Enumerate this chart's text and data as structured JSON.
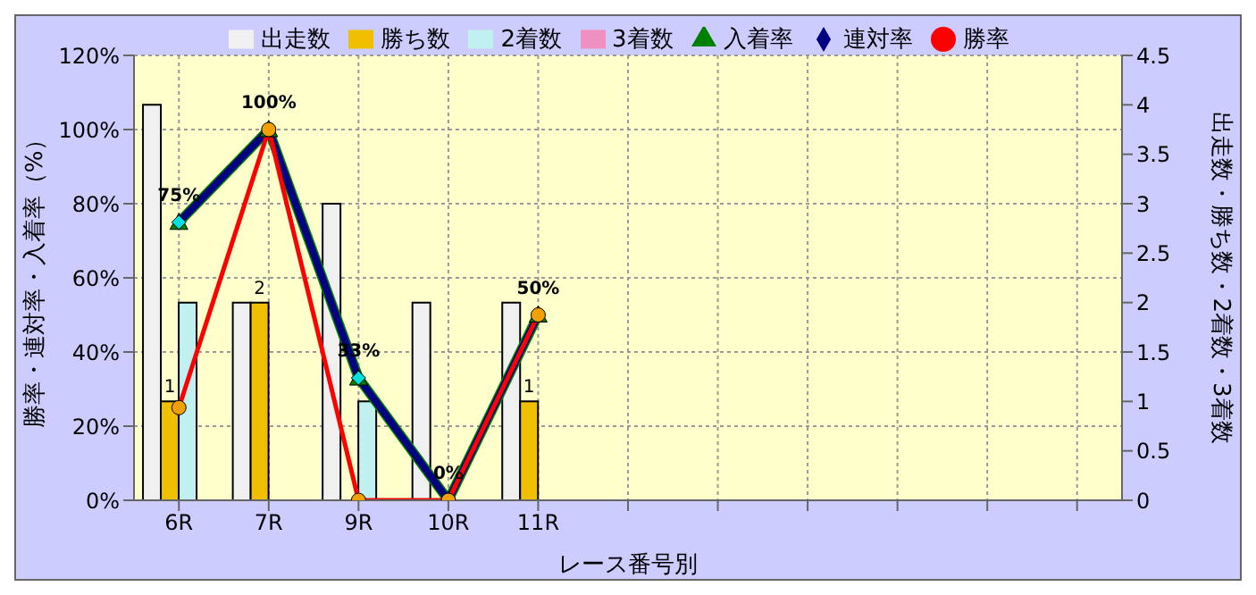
{
  "chart_data": {
    "type": "bar",
    "xlabel": "レース番号別",
    "ylabel": "勝率・連対率・入着率（%）",
    "y2label": "出走数・勝ち数・2着数・3着数",
    "categories": [
      "6R",
      "7R",
      "9R",
      "10R",
      "11R",
      null,
      null,
      null,
      null,
      null,
      null
    ],
    "series": [
      {
        "name": "出走数",
        "type": "bar",
        "axis": "y2",
        "color": "#f0f0f0",
        "values": [
          4,
          2,
          3,
          2,
          2,
          null,
          null,
          null,
          null,
          null,
          null
        ]
      },
      {
        "name": "勝ち数",
        "type": "bar",
        "axis": "y2",
        "color": "#f0c000",
        "values": [
          1,
          2,
          0,
          0,
          1,
          null,
          null,
          null,
          null,
          null,
          null
        ],
        "value_labels": [
          "1",
          "2",
          null,
          null,
          "1",
          null,
          null,
          null,
          null,
          null,
          null
        ]
      },
      {
        "name": "2着数",
        "type": "bar",
        "axis": "y2",
        "color": "#c0f0f0",
        "values": [
          2,
          0,
          1,
          0,
          0,
          null,
          null,
          null,
          null,
          null,
          null
        ]
      },
      {
        "name": "3着数",
        "type": "bar",
        "axis": "y2",
        "color": "#f090c0",
        "values": [
          0,
          0,
          0,
          0,
          0,
          null,
          null,
          null,
          null,
          null,
          null
        ]
      },
      {
        "name": "入着率",
        "type": "line",
        "marker": "triangle",
        "color": "#008000",
        "values": [
          75,
          100,
          33,
          0,
          50,
          null,
          null,
          null,
          null,
          null,
          null
        ],
        "value_labels": [
          "75%",
          "100%",
          "33%",
          "0%",
          "50%",
          null,
          null,
          null,
          null,
          null,
          null
        ]
      },
      {
        "name": "連対率",
        "type": "line",
        "marker": "diamond",
        "color": "#000080",
        "values": [
          75,
          100,
          33,
          0,
          50,
          null,
          null,
          null,
          null,
          null,
          null
        ]
      },
      {
        "name": "勝率",
        "type": "line",
        "marker": "circle",
        "color": "#ff0000",
        "values": [
          25,
          100,
          0,
          0,
          50,
          null,
          null,
          null,
          null,
          null,
          null
        ]
      }
    ],
    "ylim": [
      0,
      120
    ],
    "yticks": [
      {
        "value": 0,
        "label": "0%"
      },
      {
        "value": 20,
        "label": "20%"
      },
      {
        "value": 40,
        "label": "40%"
      },
      {
        "value": 60,
        "label": "60%"
      },
      {
        "value": 80,
        "label": "80%"
      },
      {
        "value": 100,
        "label": "100%"
      },
      {
        "value": 120,
        "label": "120%"
      }
    ],
    "y2lim": [
      0,
      4.5
    ],
    "y2ticks": [
      0,
      0.5,
      1,
      1.5,
      2,
      2.5,
      3,
      3.5,
      4,
      4.5
    ],
    "grid": true,
    "legend": "top"
  }
}
